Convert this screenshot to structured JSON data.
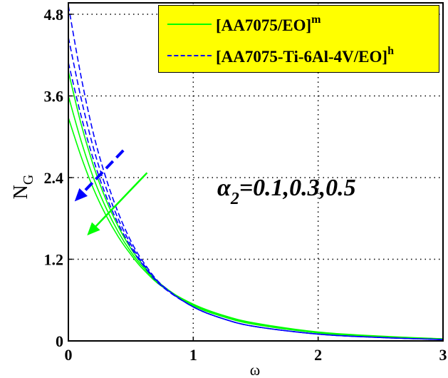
{
  "chart_data": {
    "type": "line",
    "title": "",
    "xlabel": "ω",
    "ylabel": "N_G",
    "xlim": [
      0,
      3
    ],
    "ylim": [
      0,
      5.0
    ],
    "xticks": [
      "0",
      "1",
      "2",
      "3"
    ],
    "yticks": [
      "0",
      "1.2",
      "2.4",
      "3.6",
      "4.8"
    ],
    "grid": "dotted",
    "legend_position": "upper right",
    "legend": {
      "background": "#ffff00",
      "entries": [
        {
          "label": "[AA7075/EO]",
          "superscript": "m",
          "style": "solid",
          "color": "#00ff00"
        },
        {
          "label": "[AA7075-Ti-6Al-4V/EO]",
          "superscript": "h",
          "style": "dashed",
          "color": "#0000ff"
        }
      ]
    },
    "annotation": {
      "symbol": "α",
      "subscript": "2",
      "text": "=0.1,0.3,0.5"
    },
    "x": [
      0,
      0.1,
      0.2,
      0.3,
      0.4,
      0.5,
      0.6,
      0.75,
      1.0,
      1.25,
      1.5,
      2.0,
      2.5,
      3.0
    ],
    "series": [
      {
        "name": "[AA7075/EO]^m, α2=0.1",
        "color": "#00ff00",
        "style": "solid",
        "values": [
          3.96,
          3.2,
          2.58,
          2.08,
          1.68,
          1.36,
          1.11,
          0.82,
          0.52,
          0.35,
          0.24,
          0.12,
          0.06,
          0.03
        ]
      },
      {
        "name": "[AA7075/EO]^m, α2=0.3",
        "color": "#00ff00",
        "style": "solid",
        "values": [
          3.6,
          2.95,
          2.4,
          1.96,
          1.6,
          1.31,
          1.08,
          0.81,
          0.53,
          0.36,
          0.25,
          0.12,
          0.06,
          0.03
        ]
      },
      {
        "name": "[AA7075/EO]^m, α2=0.5",
        "color": "#00ff00",
        "style": "solid",
        "values": [
          3.28,
          2.72,
          2.24,
          1.85,
          1.53,
          1.27,
          1.05,
          0.8,
          0.54,
          0.37,
          0.26,
          0.13,
          0.07,
          0.03
        ]
      },
      {
        "name": "[AA7075-Ti-6Al-4V/EO]^h, α2=0.1",
        "color": "#0000ff",
        "style": "dashed",
        "values": [
          4.93,
          3.9,
          3.05,
          2.4,
          1.88,
          1.47,
          1.16,
          0.82,
          0.5,
          0.32,
          0.21,
          0.1,
          0.05,
          0.02
        ]
      },
      {
        "name": "[AA7075-Ti-6Al-4V/EO]^h, α2=0.3",
        "color": "#0000ff",
        "style": "dashed",
        "values": [
          4.46,
          3.58,
          2.84,
          2.26,
          1.79,
          1.42,
          1.13,
          0.81,
          0.5,
          0.32,
          0.21,
          0.1,
          0.05,
          0.02
        ]
      },
      {
        "name": "[AA7075-Ti-6Al-4V/EO]^h, α2=0.5",
        "color": "#0000ff",
        "style": "dashed",
        "values": [
          4.09,
          3.32,
          2.67,
          2.14,
          1.72,
          1.38,
          1.11,
          0.8,
          0.5,
          0.32,
          0.21,
          0.1,
          0.05,
          0.02
        ]
      }
    ],
    "arrows": [
      {
        "color": "#0000ff",
        "style": "dashed",
        "from": [
          0.44,
          2.8
        ],
        "to": [
          0.05,
          2.05
        ]
      },
      {
        "color": "#00ff00",
        "style": "solid",
        "from": [
          0.63,
          2.47
        ],
        "to": [
          0.15,
          1.55
        ]
      }
    ]
  }
}
